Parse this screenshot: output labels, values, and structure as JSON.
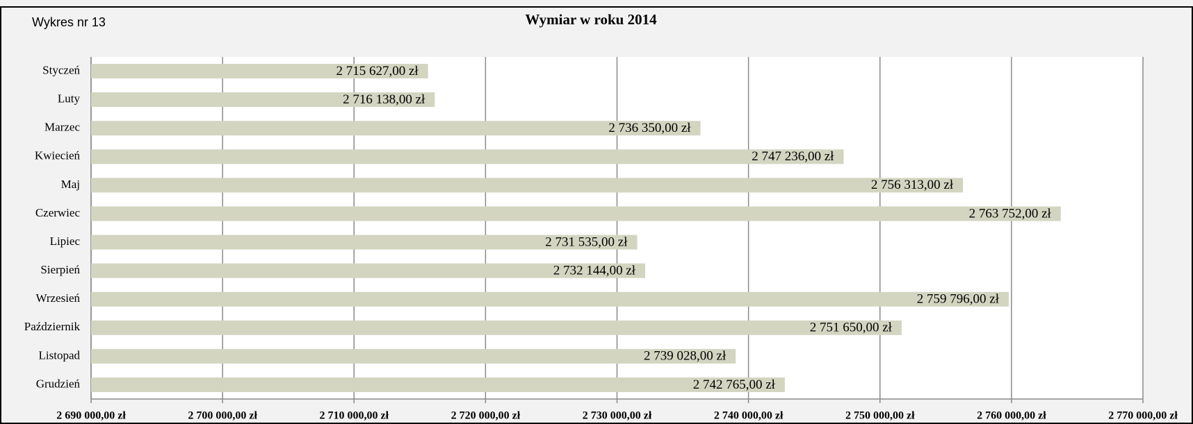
{
  "chart_data": {
    "type": "bar",
    "orientation": "horizontal",
    "title": "Wymiar w roku 2014",
    "label": "Wykres nr 13",
    "categories": [
      "Styczeń",
      "Luty",
      "Marzec",
      "Kwiecień",
      "Maj",
      "Czerwiec",
      "Lipiec",
      "Sierpień",
      "Wrzesień",
      "Październik",
      "Listopad",
      "Grudzień"
    ],
    "values": [
      2715627,
      2716138,
      2736350,
      2747236,
      2756313,
      2763752,
      2731535,
      2732144,
      2759796,
      2751650,
      2739028,
      2742765
    ],
    "value_labels": [
      "2 715 627,00 zł",
      "2 716 138,00 zł",
      "2 736 350,00 zł",
      "2 747 236,00 zł",
      "2 756 313,00 zł",
      "2 763 752,00 zł",
      "2 731 535,00 zł",
      "2 732 144,00 zł",
      "2 759 796,00 zł",
      "2 751 650,00 zł",
      "2 739 028,00 zł",
      "2 742 765,00 zł"
    ],
    "color": "#d3d5c1",
    "xlim": [
      2690000,
      2770000
    ],
    "xticks": [
      {
        "value": 2690000,
        "label": "2 690 000,00 zł"
      },
      {
        "value": 2700000,
        "label": "2 700 000,00 zł"
      },
      {
        "value": 2710000,
        "label": "2 710 000,00 zł"
      },
      {
        "value": 2720000,
        "label": "2 720 000,00 zł"
      },
      {
        "value": 2730000,
        "label": "2 730 000,00 zł"
      },
      {
        "value": 2740000,
        "label": "2 740 000,00 zł"
      },
      {
        "value": 2750000,
        "label": "2 750 000,00 zł"
      },
      {
        "value": 2760000,
        "label": "2 760 000,00 zł"
      },
      {
        "value": 2770000,
        "label": "2 770 000,00 zł"
      }
    ],
    "grid": true
  }
}
